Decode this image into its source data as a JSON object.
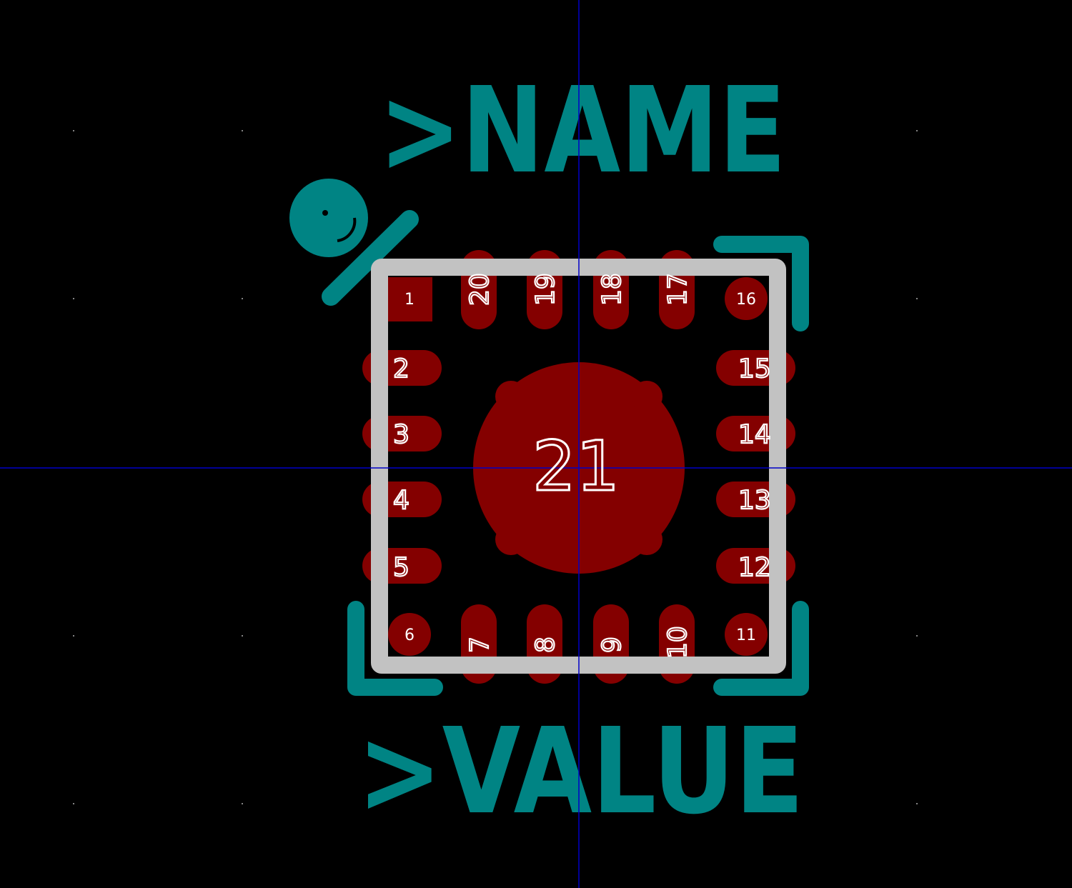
{
  "footprint": {
    "name_label": ">NAME",
    "value_label": ">VALUE",
    "thermal_pad": "21",
    "pads_left": [
      "2",
      "3",
      "4",
      "5"
    ],
    "pads_right": [
      "15",
      "14",
      "13",
      "12"
    ],
    "pads_top": [
      "20",
      "19",
      "18",
      "17"
    ],
    "pads_bottom": [
      "7",
      "8",
      "9",
      "10"
    ],
    "pads_corner": {
      "top_left": "1",
      "top_right": "16",
      "bottom_left": "6",
      "bottom_right": "11"
    }
  },
  "colors": {
    "background": "#000000",
    "silkscreen": "#008484",
    "copper_pad": "#840000",
    "courtyard_outline": "#c2c2c2",
    "pad_label": "#ffffff",
    "crosshair": "#0000c8",
    "grid_dot": "#848484"
  }
}
